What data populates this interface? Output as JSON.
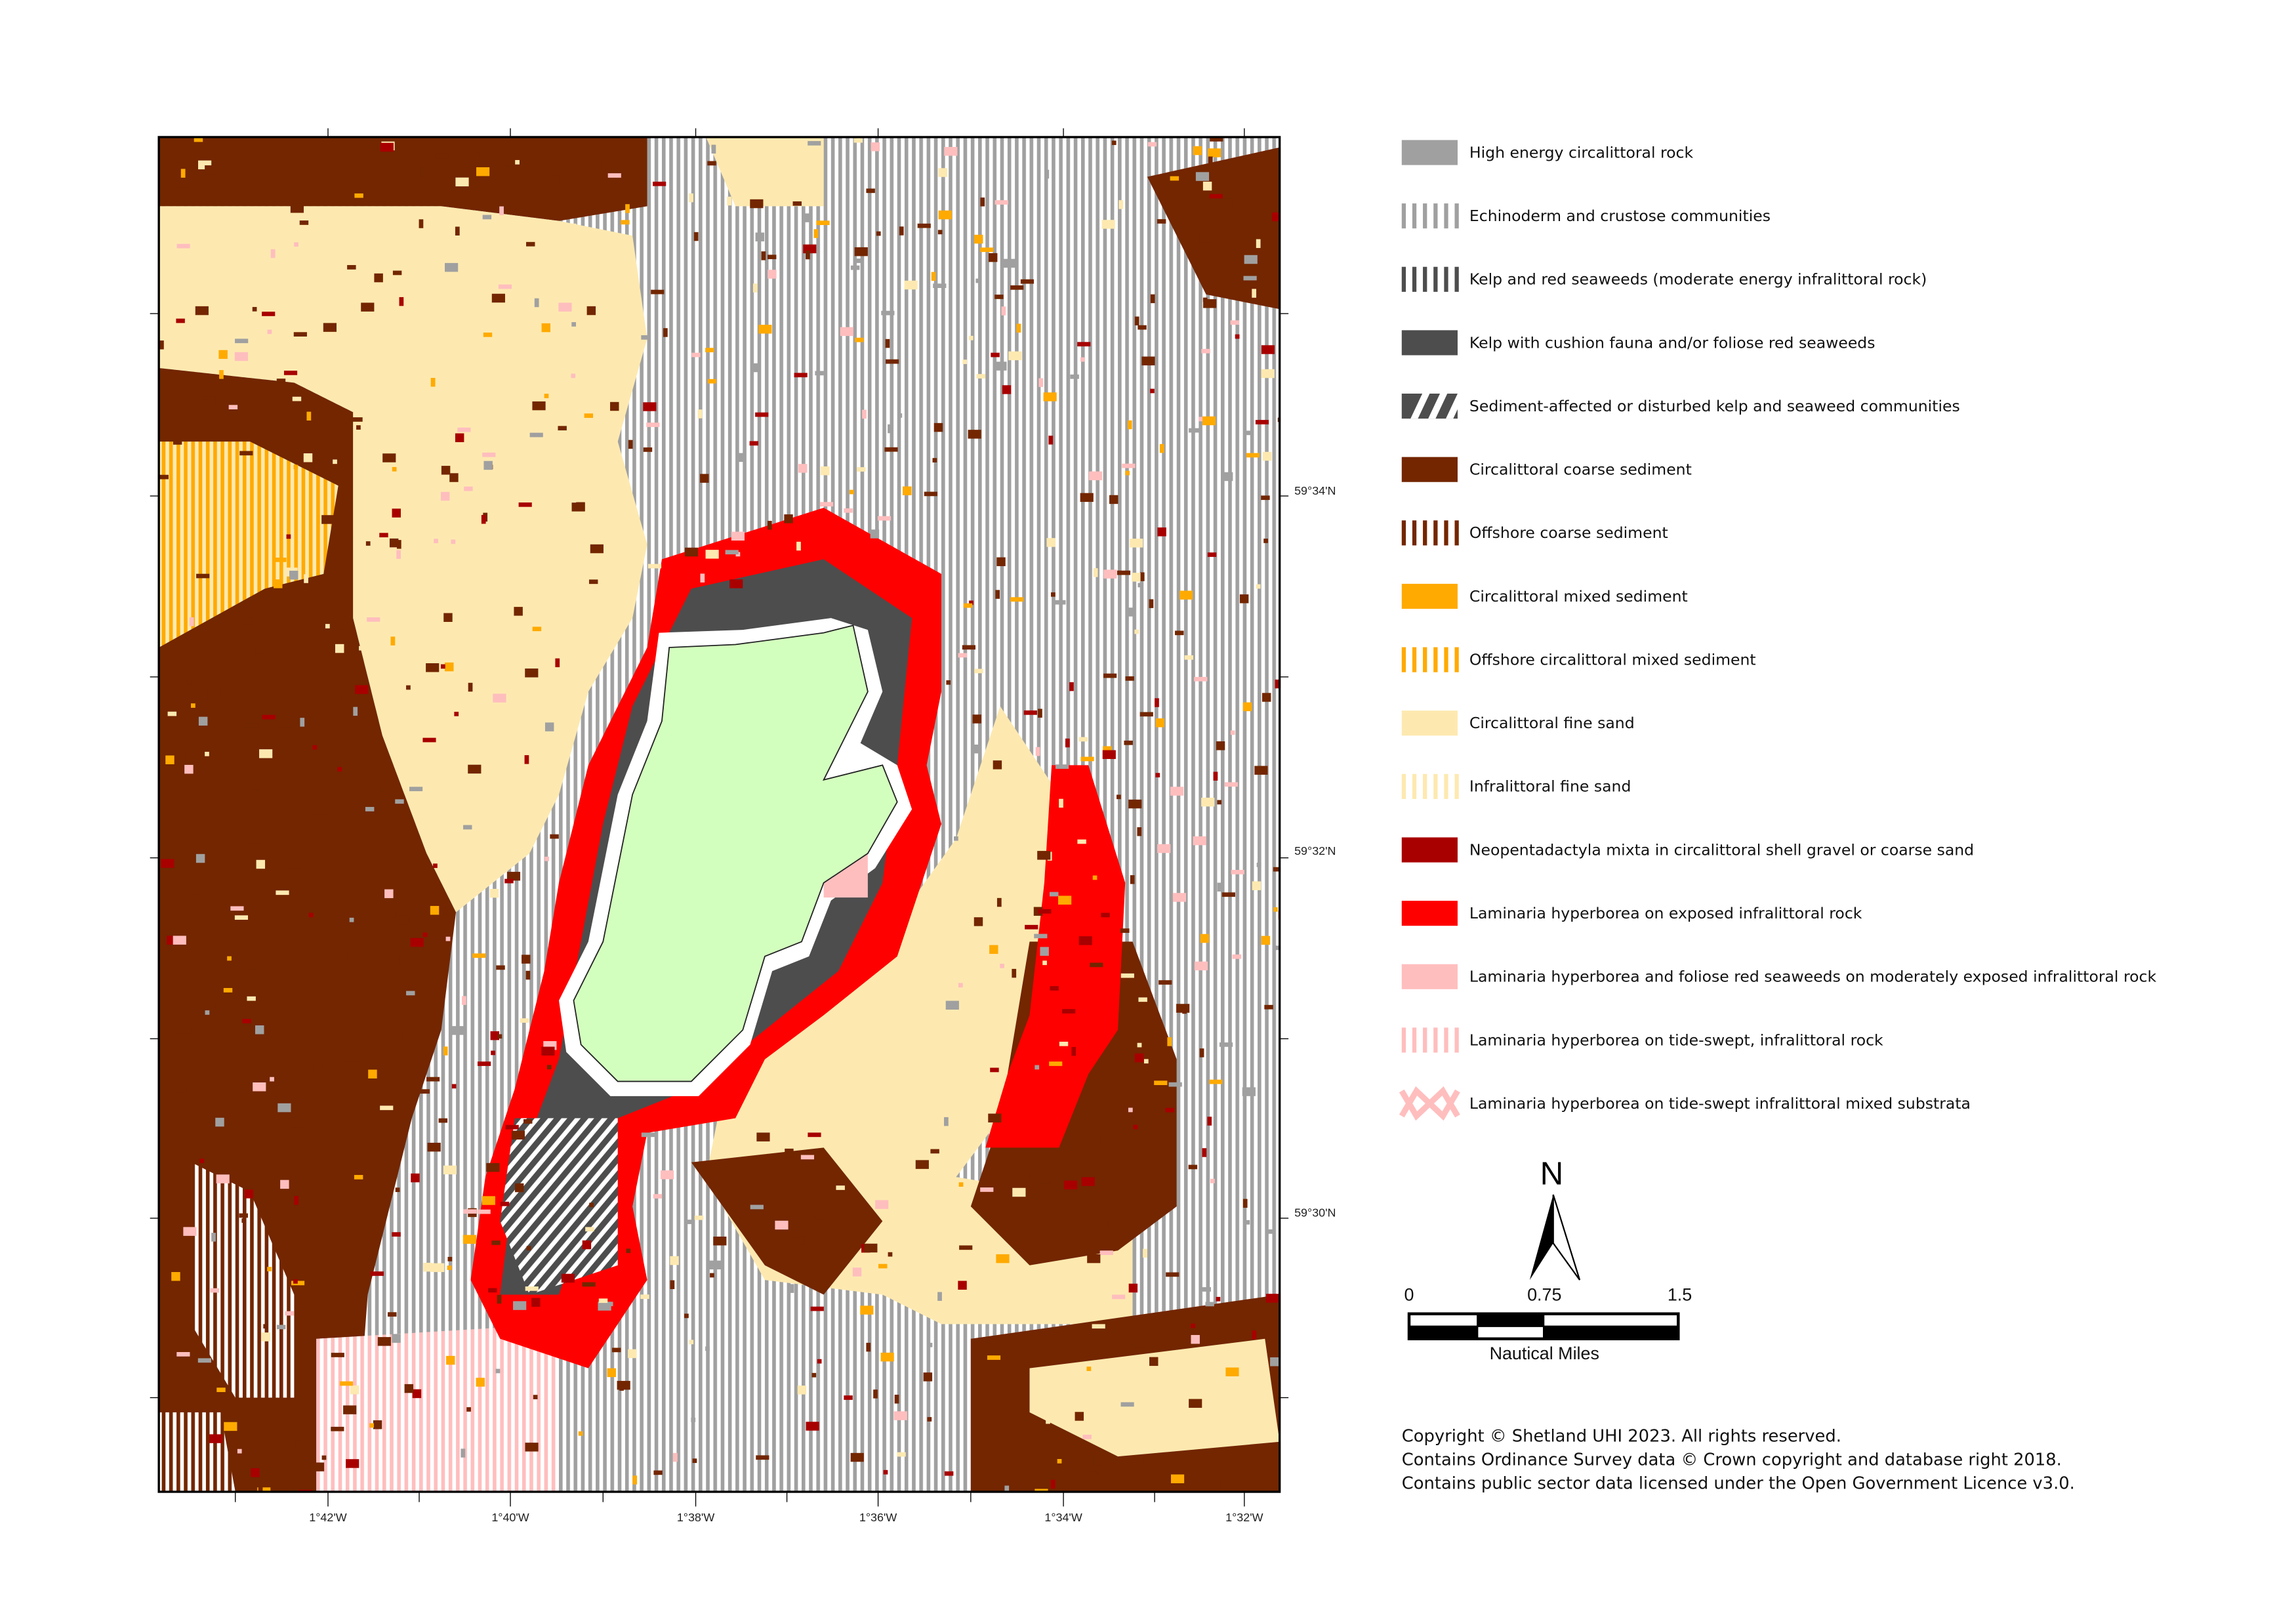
{
  "legend": {
    "items": [
      {
        "label": "High energy circalittoral rock",
        "color": "#a0a0a0",
        "pattern": "solid"
      },
      {
        "label": "Echinoderm and crustose communities",
        "color": "#a0a0a0",
        "pattern": "vertical-stripes"
      },
      {
        "label": "Kelp and red seaweeds (moderate energy infralittoral rock)",
        "color": "#4d4d4d",
        "pattern": "vertical-stripes"
      },
      {
        "label": "Kelp with cushion fauna and/or foliose red seaweeds",
        "color": "#4d4d4d",
        "pattern": "solid"
      },
      {
        "label": "Sediment-affected or disturbed kelp and seaweed communities",
        "color": "#4d4d4d",
        "pattern": "diagonal-hatch"
      },
      {
        "label": "Circalittoral coarse sediment",
        "color": "#732600",
        "pattern": "solid"
      },
      {
        "label": "Offshore coarse sediment",
        "color": "#732600",
        "pattern": "vertical-stripes"
      },
      {
        "label": "Circalittoral mixed sediment",
        "color": "#ffaa00",
        "pattern": "solid"
      },
      {
        "label": "Offshore circalittoral mixed sediment",
        "color": "#ffaa00",
        "pattern": "vertical-stripes"
      },
      {
        "label": "Circalittoral fine sand",
        "color": "#fde9b0",
        "pattern": "solid"
      },
      {
        "label": "Infralittoral fine sand",
        "color": "#fde9b0",
        "pattern": "vertical-stripes"
      },
      {
        "label": "Neopentadactyla mixta in circalittoral shell gravel or coarse sand",
        "color": "#a80000",
        "pattern": "solid"
      },
      {
        "label": "Laminaria hyperborea on exposed infralittoral rock",
        "color": "#ff0000",
        "pattern": "solid"
      },
      {
        "label": "Laminaria hyperborea and foliose red seaweeds on moderately exposed infralittoral rock",
        "color": "#ffbebe",
        "pattern": "solid"
      },
      {
        "label": "Laminaria hyperborea on tide-swept, infralittoral rock",
        "color": "#ffbebe",
        "pattern": "vertical-stripes"
      },
      {
        "label": "Laminaria hyperborea on tide-swept infralittoral mixed substrata",
        "color": "#ffbebe",
        "pattern": "zigzag"
      }
    ]
  },
  "land_color": "#d3ffbe",
  "axes": {
    "longitude_labels": [
      "1°42'W",
      "1°40'W",
      "1°38'W",
      "1°36'W",
      "1°34'W",
      "1°32'W"
    ],
    "latitude_labels": [
      "59°34'N",
      "59°32'N",
      "59°30'N"
    ]
  },
  "north_arrow": {
    "label": "N"
  },
  "scale_bar": {
    "ticks": [
      "0",
      "0.75",
      "1.5"
    ],
    "unit": "Nautical Miles"
  },
  "copyright": [
    "Copyright © Shetland UHI 2023. All rights reserved.",
    "Contains Ordinance Survey data © Crown copyright and database right 2018.",
    "Contains public sector data licensed under the Open Government Licence v3.0."
  ]
}
